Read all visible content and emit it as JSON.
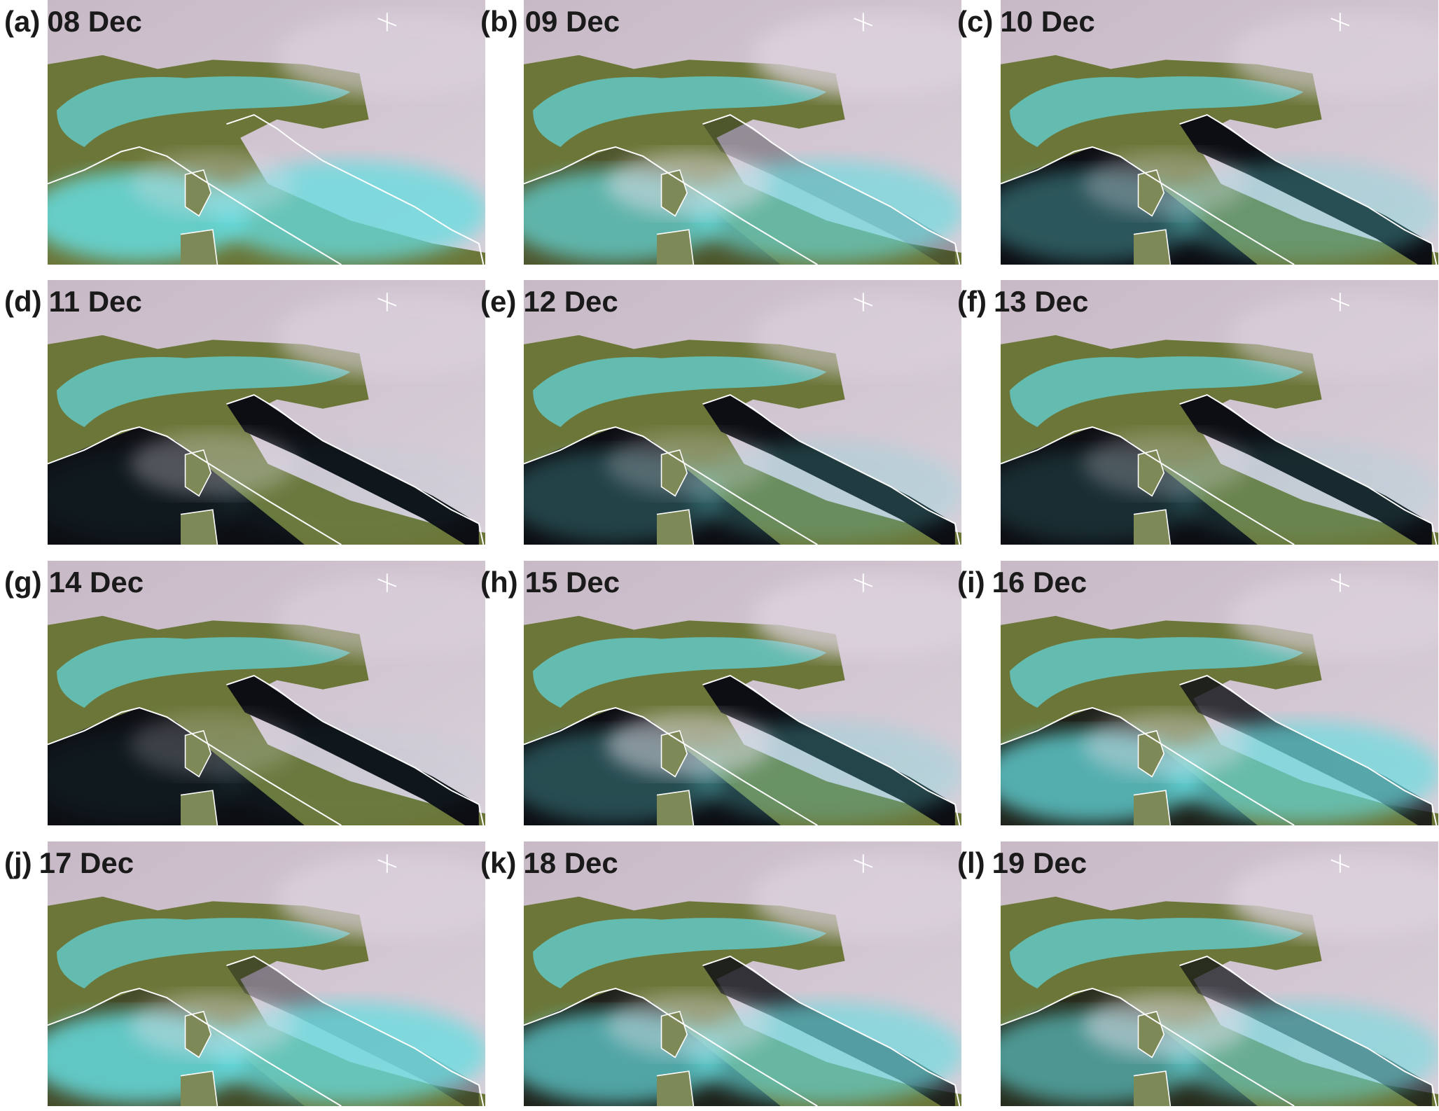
{
  "panels": [
    {
      "letter": "(a)",
      "date": "08 Dec"
    },
    {
      "letter": "(b)",
      "date": "09 Dec"
    },
    {
      "letter": "(c)",
      "date": "10 Dec"
    },
    {
      "letter": "(d)",
      "date": "11 Dec"
    },
    {
      "letter": "(e)",
      "date": "12 Dec"
    },
    {
      "letter": "(f)",
      "date": "13 Dec"
    },
    {
      "letter": "(g)",
      "date": "14 Dec"
    },
    {
      "letter": "(h)",
      "date": "15 Dec"
    },
    {
      "letter": "(i)",
      "date": "16 Dec"
    },
    {
      "letter": "(j)",
      "date": "17 Dec"
    },
    {
      "letter": "(k)",
      "date": "18 Dec"
    },
    {
      "letter": "(l)",
      "date": "19 Dec"
    }
  ]
}
